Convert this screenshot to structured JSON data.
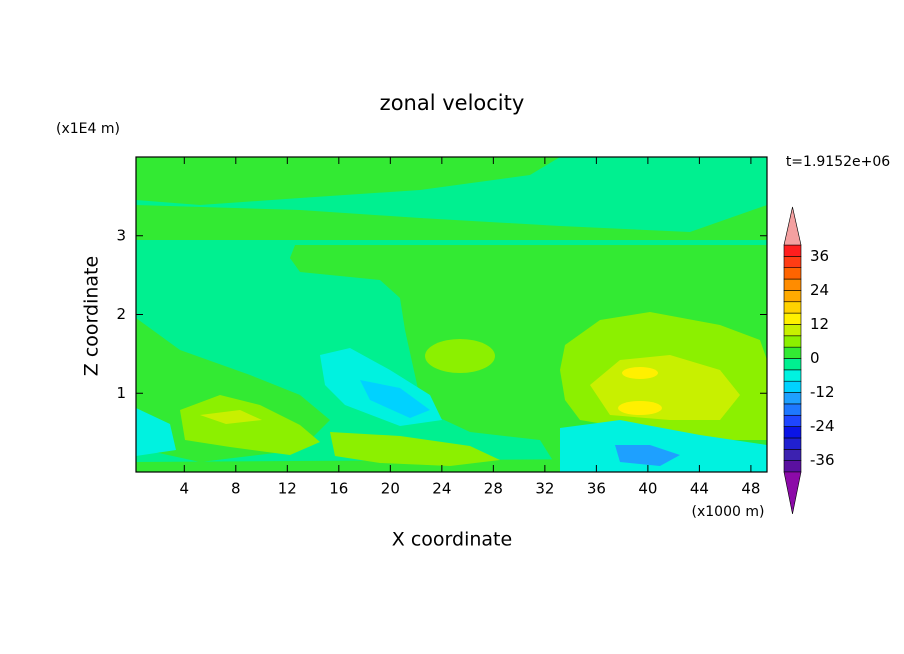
{
  "chart_data": {
    "type": "contour",
    "title": "zonal velocity",
    "x_label": "X coordinate",
    "y_label": "Z coordinate",
    "x_unit": "(x1000 m)",
    "y_unit": "(x1E4 m)",
    "time_label": "t=1.9152e+06",
    "xlim": [
      0.25,
      49.25
    ],
    "xticks": [
      4,
      8,
      12,
      16,
      20,
      24,
      28,
      32,
      36,
      40,
      44,
      48
    ],
    "ylim": [
      0,
      4
    ],
    "yticks": [
      1,
      2,
      3
    ],
    "levels": [
      -40,
      -36,
      -32,
      -28,
      -24,
      -20,
      -16,
      -12,
      -8,
      -4,
      0,
      4,
      8,
      12,
      16,
      20,
      24,
      28,
      32,
      36,
      40
    ],
    "colors": [
      "#5a10a0",
      "#3c22b0",
      "#2020d0",
      "#0a14e6",
      "#1e46ff",
      "#1e78ff",
      "#1ea0ff",
      "#00d2ff",
      "#00f2e0",
      "#00f090",
      "#33ea33",
      "#8cf000",
      "#c8f000",
      "#fff000",
      "#ffd200",
      "#ffaa00",
      "#ff8c00",
      "#ff6400",
      "#ff3c14",
      "#ff1e1e"
    ],
    "under_color": "#8c0aa8",
    "over_color": "#f4a0a0",
    "colorbar_ticks": [
      -36,
      -24,
      -12,
      0,
      12,
      24,
      36
    ]
  }
}
